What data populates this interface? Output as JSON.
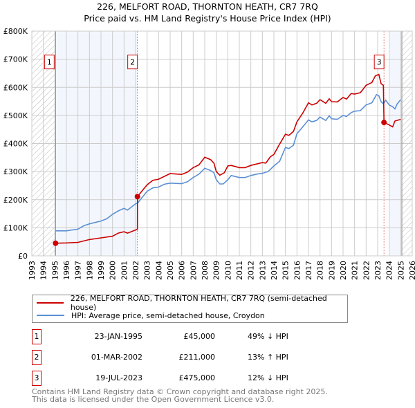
{
  "title": "226, MELFORT ROAD, THORNTON HEATH, CR7 7RQ",
  "subtitle": "Price paid vs. HM Land Registry's House Price Index (HPI)",
  "chart_data": {
    "type": "line",
    "xlim": [
      1993,
      2026
    ],
    "ylim": [
      0,
      800000
    ],
    "yticks": [
      {
        "v": 0,
        "label": "£0"
      },
      {
        "v": 100000,
        "label": "£100K"
      },
      {
        "v": 200000,
        "label": "£200K"
      },
      {
        "v": 300000,
        "label": "£300K"
      },
      {
        "v": 400000,
        "label": "£400K"
      },
      {
        "v": 500000,
        "label": "£500K"
      },
      {
        "v": 600000,
        "label": "£600K"
      },
      {
        "v": 700000,
        "label": "£700K"
      },
      {
        "v": 800000,
        "label": "£800K"
      }
    ],
    "xticks": [
      "1993",
      "1994",
      "1995",
      "1996",
      "1997",
      "1998",
      "1999",
      "2000",
      "2001",
      "2002",
      "2003",
      "2004",
      "2005",
      "2006",
      "2007",
      "2008",
      "2009",
      "2010",
      "2011",
      "2012",
      "2013",
      "2014",
      "2015",
      "2016",
      "2017",
      "2018",
      "2019",
      "2020",
      "2021",
      "2022",
      "2023",
      "2024",
      "2025",
      "2026"
    ],
    "series": [
      {
        "name": "226, MELFORT ROAD, THORNTON HEATH, CR7 7RQ (semi-detached house)",
        "color": "#cc0000",
        "x": [
          1995.06,
          1996,
          1997,
          1998,
          1999,
          2000,
          2000.5,
          2001,
          2001.3,
          2002.0,
          2002.16,
          2002.17,
          2003,
          2003.5,
          2004,
          2005,
          2006,
          2006.5,
          2007,
          2007.5,
          2008,
          2008.5,
          2008.8,
          2009,
          2009.3,
          2009.7,
          2010,
          2010.3,
          2011,
          2011.5,
          2012,
          2012.5,
          2013,
          2013.3,
          2013.7,
          2014,
          2014.5,
          2015,
          2015.3,
          2015.7,
          2016,
          2016.5,
          2017,
          2017.3,
          2017.7,
          2018,
          2018.5,
          2018.8,
          2019,
          2019.5,
          2020,
          2020.3,
          2020.7,
          2021,
          2021.5,
          2022,
          2022.5,
          2022.8,
          2023.1,
          2023.3,
          2023.5,
          2023.55,
          2024,
          2024.3,
          2024.5,
          2025
        ],
        "y": [
          45000,
          46000,
          48000,
          58000,
          64000,
          70000,
          81000,
          86000,
          81000,
          92000,
          95000,
          211000,
          253000,
          269000,
          273000,
          293000,
          290000,
          298000,
          314000,
          324000,
          351000,
          343000,
          330000,
          300000,
          287000,
          296000,
          320000,
          322000,
          314000,
          314000,
          322000,
          327000,
          332000,
          330000,
          353000,
          361000,
          398000,
          433000,
          429000,
          443000,
          477000,
          508000,
          545000,
          537000,
          543000,
          556000,
          543000,
          559000,
          549000,
          548000,
          564000,
          558000,
          578000,
          576000,
          581000,
          607000,
          617000,
          641000,
          646000,
          613000,
          607000,
          475000,
          466000,
          459000,
          480000,
          486000
        ]
      },
      {
        "name": "HPI: Average price, semi-detached house, Croydon",
        "color": "#5b8fd4",
        "x": [
          1995.06,
          1996,
          1997,
          1997.5,
          1998,
          1999,
          1999.5,
          2000,
          2000.5,
          2001,
          2001.3,
          2002,
          2002.2,
          2003,
          2003.5,
          2004,
          2004.5,
          2005,
          2006,
          2006.5,
          2007,
          2007.5,
          2008,
          2008.5,
          2008.8,
          2009,
          2009.3,
          2009.6,
          2010,
          2010.3,
          2011,
          2011.5,
          2012,
          2012.5,
          2013,
          2013.5,
          2014,
          2014.5,
          2015,
          2015.3,
          2015.7,
          2016,
          2016.5,
          2017,
          2017.3,
          2017.7,
          2018,
          2018.5,
          2018.8,
          2019,
          2019.5,
          2020,
          2020.3,
          2020.7,
          2021,
          2021.5,
          2022,
          2022.5,
          2022.9,
          2023.1,
          2023.3,
          2023.5,
          2023.7,
          2024,
          2024.3,
          2024.5,
          2024.7,
          2025
        ],
        "y": [
          89000,
          89000,
          95000,
          107000,
          114000,
          124000,
          132000,
          148000,
          160000,
          169000,
          163000,
          185000,
          189000,
          230000,
          242000,
          245000,
          255000,
          259000,
          257000,
          264000,
          279000,
          291000,
          312000,
          304000,
          296000,
          271000,
          256000,
          256000,
          271000,
          286000,
          279000,
          279000,
          286000,
          291000,
          294000,
          300000,
          320000,
          337000,
          386000,
          382000,
          394000,
          435000,
          459000,
          484000,
          477000,
          482000,
          494000,
          482000,
          499000,
          488000,
          486000,
          500000,
          496000,
          510000,
          515000,
          517000,
          537000,
          545000,
          574000,
          570000,
          549000,
          541000,
          554000,
          537000,
          531000,
          523000,
          541000,
          556000
        ]
      }
    ],
    "sales": [
      {
        "id": "1",
        "x": 1995.06,
        "y": 45000,
        "date": "23-JAN-1995",
        "price": "£45,000",
        "hpi": "49% ↓ HPI"
      },
      {
        "id": "2",
        "x": 2002.16,
        "y": 211000,
        "date": "01-MAR-2002",
        "price": "£211,000",
        "hpi": "13% ↑ HPI"
      },
      {
        "id": "3",
        "x": 2023.55,
        "y": 475000,
        "date": "19-JUL-2023",
        "price": "£475,000",
        "hpi": "12% ↓ HPI"
      }
    ],
    "marker_label_y": 700000
  },
  "footer": [
    "Contains HM Land Registry data © Crown copyright and database right 2025.",
    "This data is licensed under the Open Government Licence v3.0."
  ]
}
